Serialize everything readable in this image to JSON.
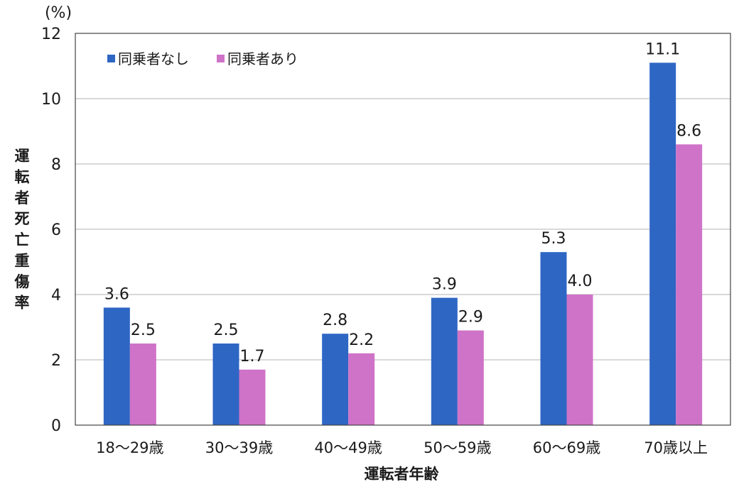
{
  "chart_data": {
    "type": "bar",
    "categories": [
      "18～29歳",
      "30～39歳",
      "40～49歳",
      "50～59歳",
      "60～69歳",
      "70歳以上"
    ],
    "series": [
      {
        "name": "同乗者なし",
        "values": [
          3.6,
          2.5,
          2.8,
          3.9,
          5.3,
          11.1
        ],
        "color": "#2e66c4"
      },
      {
        "name": "同乗者あり",
        "values": [
          2.5,
          1.7,
          2.2,
          2.9,
          4.0,
          8.6
        ],
        "color": "#cf73c8"
      }
    ],
    "data_labels": [
      [
        "3.6",
        "2.5",
        "2.8",
        "3.9",
        "5.3",
        "11.1"
      ],
      [
        "2.5",
        "1.7",
        "2.2",
        "2.9",
        "4.0",
        "8.6"
      ]
    ],
    "title": "",
    "xlabel": "運転者年齢",
    "ylabel": "運転者死亡重傷率",
    "yunit": "(%)",
    "ylim": [
      0,
      12
    ],
    "yticks": [
      0,
      2,
      4,
      6,
      8,
      10,
      12
    ],
    "grid": true,
    "legend_position": "top-left"
  }
}
